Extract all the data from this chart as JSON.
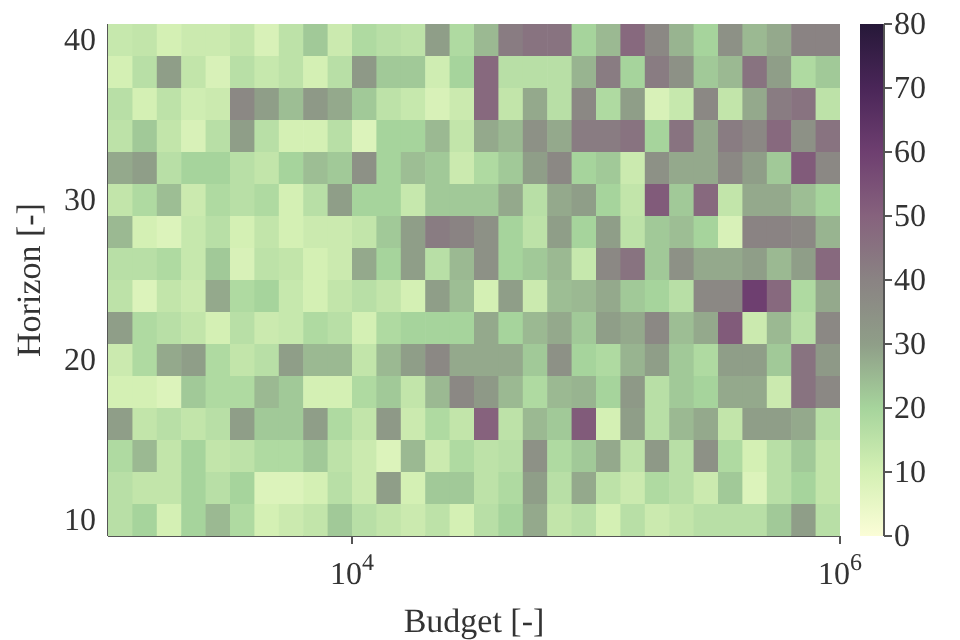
{
  "chart_data": {
    "type": "heatmap",
    "xlabel": "Budget [-]",
    "ylabel": "Horizon [-]",
    "x": [
      1122,
      1413,
      1778,
      2239,
      2818,
      3548,
      4467,
      5623,
      7079,
      8913,
      11220,
      14125,
      17783,
      22387,
      28184,
      35481,
      44668,
      56234,
      70795,
      89125,
      112202,
      141254,
      177828,
      223872,
      281838,
      354813,
      446684,
      562341,
      707946,
      891251
    ],
    "y_categories": [
      "40",
      null,
      null,
      null,
      null,
      "30",
      null,
      null,
      null,
      null,
      "20",
      null,
      null,
      null,
      null,
      "10"
    ],
    "log": "x",
    "xlim": [
      1000,
      1000000
    ],
    "xticks": [
      {
        "value": 10000,
        "label": "10$^{4}$"
      },
      {
        "value": 1000000,
        "label": "10$^{6}$"
      }
    ],
    "clim": [
      0,
      80
    ],
    "cticks": [
      0,
      10,
      20,
      30,
      40,
      50,
      60,
      70,
      80
    ],
    "grid": false,
    "cells": [
      [
        13,
        14,
        10,
        12,
        12,
        14,
        9,
        15,
        22,
        12,
        18,
        16,
        15,
        30,
        18,
        25,
        42,
        45,
        45,
        20,
        25,
        48,
        38,
        26,
        20,
        35,
        25,
        28,
        40,
        40
      ],
      [
        10,
        16,
        30,
        14,
        9,
        16,
        13,
        15,
        10,
        16,
        32,
        22,
        22,
        11,
        20,
        48,
        16,
        16,
        16,
        26,
        42,
        20,
        42,
        35,
        22,
        25,
        45,
        30,
        18,
        22
      ],
      [
        16,
        10,
        15,
        11,
        12,
        38,
        30,
        24,
        32,
        28,
        22,
        15,
        13,
        9,
        12,
        48,
        14,
        28,
        16,
        38,
        18,
        30,
        9,
        13,
        38,
        14,
        28,
        42,
        45,
        15
      ],
      [
        15,
        22,
        14,
        9,
        16,
        30,
        16,
        10,
        10,
        16,
        8,
        20,
        20,
        25,
        14,
        28,
        25,
        35,
        28,
        42,
        42,
        45,
        20,
        45,
        28,
        42,
        38,
        48,
        35,
        45
      ],
      [
        28,
        30,
        16,
        20,
        20,
        16,
        14,
        20,
        24,
        22,
        35,
        20,
        24,
        22,
        12,
        18,
        22,
        30,
        38,
        20,
        22,
        12,
        35,
        28,
        28,
        38,
        30,
        22,
        52,
        38
      ],
      [
        14,
        18,
        24,
        12,
        18,
        16,
        18,
        10,
        16,
        30,
        20,
        20,
        13,
        22,
        22,
        22,
        28,
        16,
        28,
        30,
        20,
        14,
        52,
        22,
        48,
        14,
        28,
        28,
        24,
        20
      ],
      [
        25,
        10,
        8,
        13,
        16,
        10,
        14,
        10,
        12,
        12,
        14,
        22,
        30,
        42,
        40,
        35,
        20,
        15,
        30,
        20,
        30,
        15,
        22,
        24,
        20,
        9,
        40,
        40,
        38,
        26
      ],
      [
        16,
        16,
        18,
        13,
        22,
        9,
        15,
        14,
        10,
        12,
        28,
        20,
        30,
        16,
        25,
        35,
        20,
        22,
        25,
        13,
        38,
        45,
        22,
        35,
        28,
        28,
        30,
        25,
        30,
        48
      ],
      [
        15,
        8,
        14,
        12,
        28,
        18,
        20,
        13,
        10,
        14,
        16,
        14,
        10,
        30,
        24,
        10,
        30,
        12,
        24,
        25,
        28,
        22,
        20,
        16,
        38,
        38,
        60,
        48,
        18,
        28
      ],
      [
        30,
        18,
        16,
        14,
        10,
        16,
        12,
        13,
        18,
        16,
        10,
        18,
        20,
        20,
        20,
        28,
        20,
        25,
        28,
        22,
        30,
        28,
        38,
        24,
        28,
        52,
        12,
        25,
        16,
        38
      ],
      [
        12,
        18,
        28,
        30,
        18,
        14,
        16,
        30,
        25,
        25,
        14,
        25,
        30,
        38,
        28,
        28,
        28,
        22,
        35,
        20,
        18,
        26,
        30,
        22,
        18,
        30,
        30,
        22,
        45,
        32
      ],
      [
        10,
        10,
        8,
        22,
        18,
        18,
        25,
        22,
        10,
        10,
        18,
        22,
        14,
        25,
        38,
        32,
        25,
        18,
        25,
        26,
        20,
        32,
        16,
        22,
        20,
        28,
        28,
        12,
        45,
        38
      ],
      [
        30,
        14,
        16,
        14,
        16,
        30,
        22,
        22,
        30,
        18,
        14,
        32,
        12,
        18,
        14,
        50,
        15,
        25,
        22,
        52,
        10,
        30,
        16,
        25,
        28,
        14,
        30,
        30,
        28,
        16
      ],
      [
        18,
        25,
        14,
        20,
        14,
        15,
        18,
        18,
        22,
        15,
        12,
        8,
        25,
        12,
        18,
        15,
        16,
        35,
        18,
        22,
        28,
        15,
        32,
        16,
        35,
        18,
        10,
        16,
        22,
        14
      ],
      [
        16,
        14,
        14,
        20,
        16,
        20,
        8,
        8,
        10,
        16,
        12,
        30,
        10,
        22,
        22,
        15,
        18,
        30,
        16,
        28,
        15,
        12,
        18,
        16,
        12,
        22,
        8,
        16,
        20,
        14
      ],
      [
        16,
        20,
        10,
        20,
        25,
        18,
        10,
        12,
        14,
        22,
        16,
        14,
        12,
        15,
        10,
        16,
        20,
        28,
        14,
        16,
        10,
        16,
        12,
        14,
        16,
        16,
        16,
        22,
        30,
        16
      ]
    ]
  }
}
